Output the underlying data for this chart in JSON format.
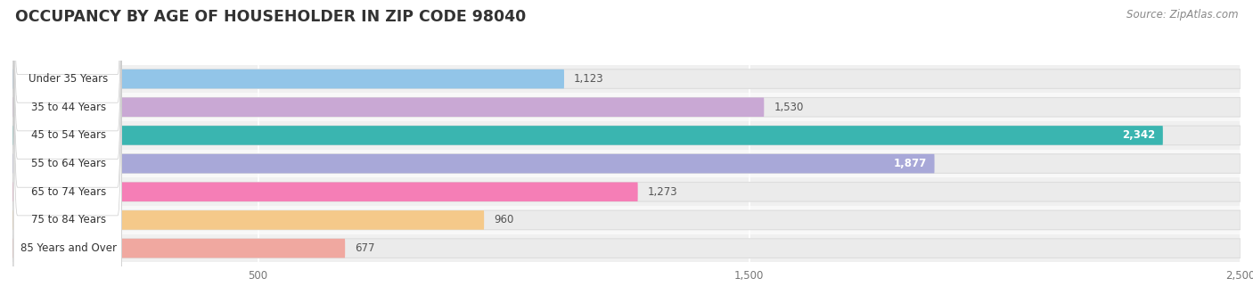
{
  "title": "OCCUPANCY BY AGE OF HOUSEHOLDER IN ZIP CODE 98040",
  "source": "Source: ZipAtlas.com",
  "categories": [
    "Under 35 Years",
    "35 to 44 Years",
    "45 to 54 Years",
    "55 to 64 Years",
    "65 to 74 Years",
    "75 to 84 Years",
    "85 Years and Over"
  ],
  "values": [
    1123,
    1530,
    2342,
    1877,
    1273,
    960,
    677
  ],
  "bar_colors": [
    "#92c5e8",
    "#c9a8d4",
    "#3ab5b0",
    "#a8a8d8",
    "#f57eb6",
    "#f5c98a",
    "#f0a8a0"
  ],
  "value_inside": [
    false,
    false,
    true,
    true,
    false,
    false,
    false
  ],
  "bar_bg_color": "#ebebeb",
  "xlim_start": 0,
  "xlim_end": 2500,
  "xticks": [
    500,
    1500,
    2500
  ],
  "title_fontsize": 12.5,
  "label_fontsize": 8.5,
  "value_fontsize": 8.5,
  "source_fontsize": 8.5,
  "background_color": "#ffffff",
  "plot_bg_color": "#f7f7f7",
  "bar_height": 0.68,
  "bar_gap": 0.32
}
